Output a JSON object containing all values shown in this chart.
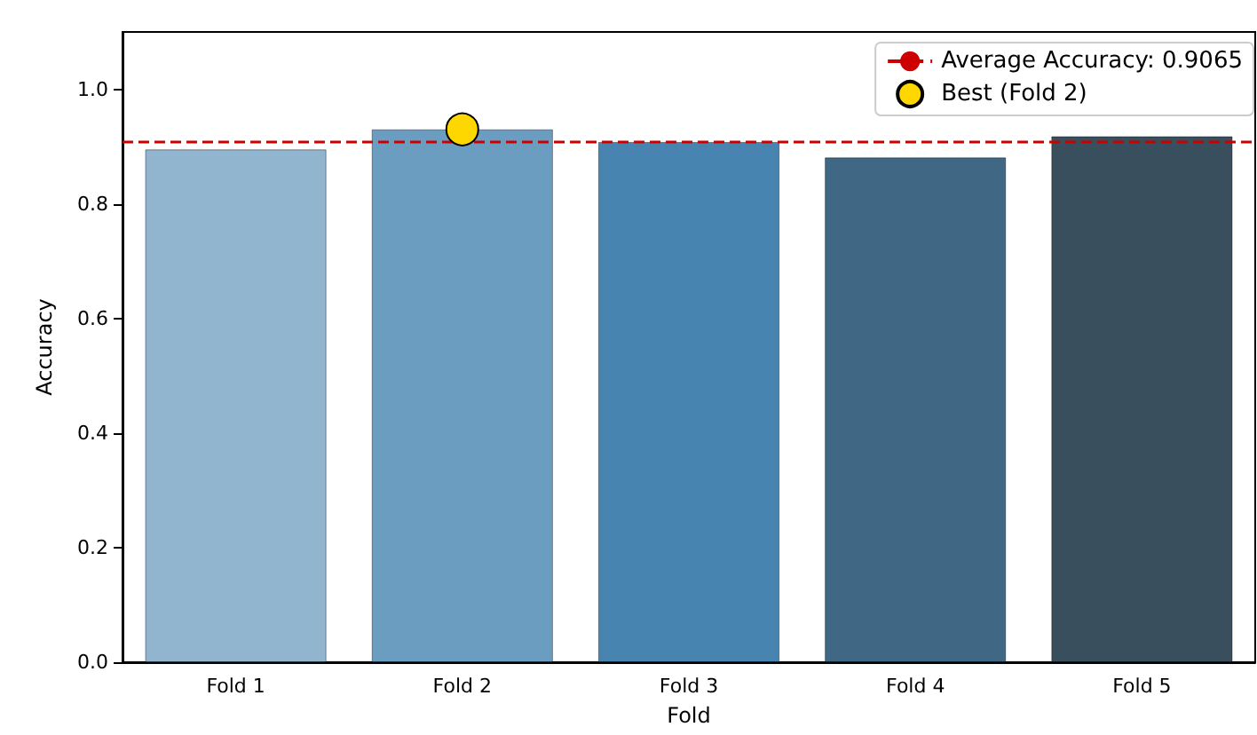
{
  "chart_data": {
    "type": "bar",
    "xlabel": "Fold",
    "ylabel": "Accuracy",
    "categories": [
      "Fold 1",
      "Fold 2",
      "Fold 3",
      "Fold 4",
      "Fold 5"
    ],
    "series": [
      {
        "values": [
          0.895,
          0.93,
          0.908,
          0.881,
          0.918
        ],
        "colors": [
          "#91b4cf",
          "#6b9dc0",
          "#4884b0",
          "#406885",
          "#3a4f5d"
        ]
      },
      {
        "type": "scatter",
        "name": "Best (Fold 2)",
        "color": "#ffd700",
        "x": [
          "Fold 2"
        ],
        "values": [
          0.93
        ]
      }
    ],
    "ylim": [
      0,
      1.1
    ],
    "yticks": [
      {
        "value": 0,
        "label": "0.0"
      },
      0.2,
      0.4,
      0.6,
      0.8,
      {
        "value": 1,
        "label": "1.0"
      }
    ],
    "ref_lines": [
      {
        "axis": "y",
        "value": 0.9065,
        "label": "Average Accuracy: 0.9065",
        "color": "#cc0000",
        "line_style": "dashed"
      }
    ],
    "legend": "top right",
    "grid": false,
    "marker": "circle"
  }
}
